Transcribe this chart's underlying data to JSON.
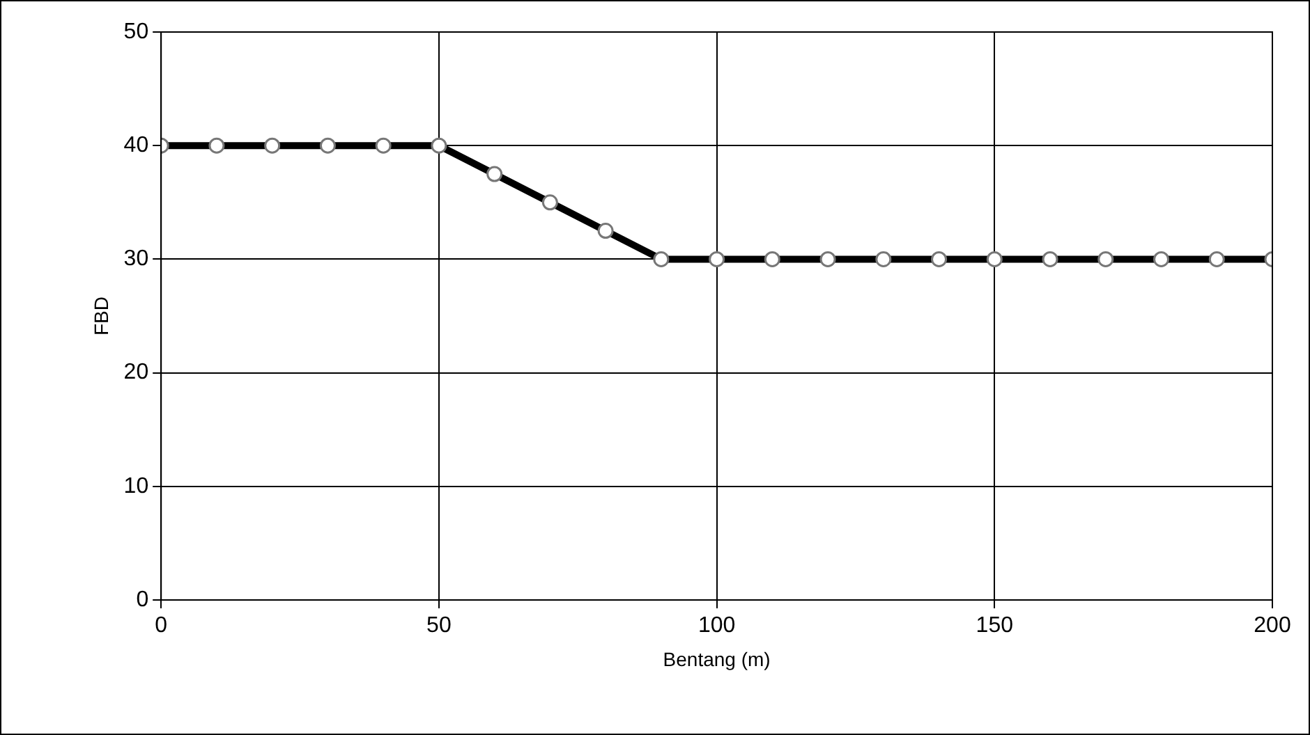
{
  "chart_data": {
    "type": "line",
    "xlabel": "Bentang (m)",
    "ylabel": "FBD",
    "x": [
      0,
      10,
      20,
      30,
      40,
      50,
      60,
      70,
      80,
      90,
      100,
      110,
      120,
      130,
      140,
      150,
      160,
      170,
      180,
      190,
      200
    ],
    "series": [
      {
        "color": "#000000",
        "values": [
          40,
          40,
          40,
          40,
          40,
          40,
          37.5,
          35,
          32.5,
          30,
          30,
          30,
          30,
          30,
          30,
          30,
          30,
          30,
          30,
          30,
          30
        ]
      }
    ],
    "xlim": [
      0,
      200
    ],
    "xticks": [
      0,
      50,
      100,
      150,
      200
    ],
    "ylim": [
      0,
      50
    ],
    "yticks": [
      0,
      10,
      20,
      30,
      40,
      50
    ],
    "grid": true,
    "marker": "circle",
    "line_style": "solid"
  }
}
